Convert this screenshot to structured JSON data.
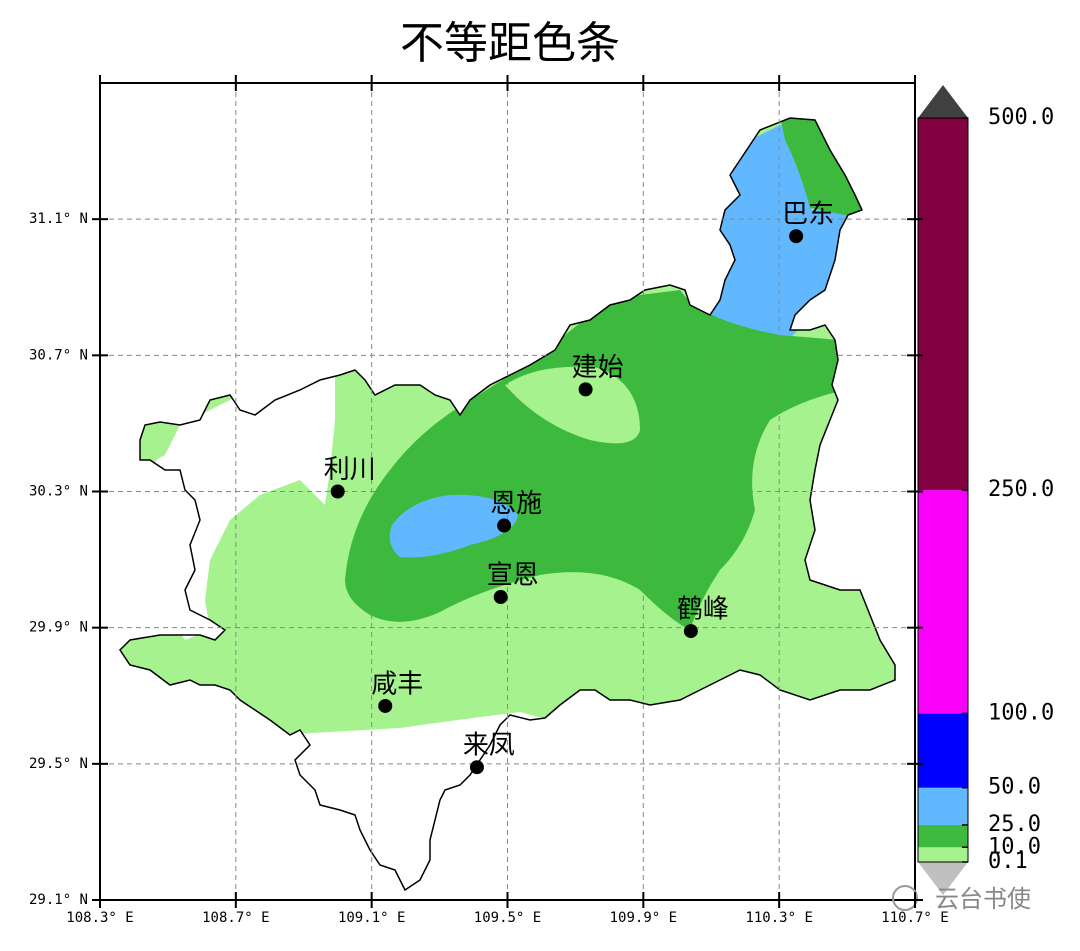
{
  "title": "不等距色条",
  "map": {
    "xlim": [
      108.3,
      110.7
    ],
    "ylim": [
      29.1,
      31.5
    ],
    "xticks": [
      {
        "value": 108.3,
        "label": "108.3° E"
      },
      {
        "value": 108.7,
        "label": "108.7° E"
      },
      {
        "value": 109.1,
        "label": "109.1° E"
      },
      {
        "value": 109.5,
        "label": "109.5° E"
      },
      {
        "value": 109.9,
        "label": "109.9° E"
      },
      {
        "value": 110.3,
        "label": "110.3° E"
      },
      {
        "value": 110.7,
        "label": "110.7° E"
      }
    ],
    "yticks": [
      {
        "value": 29.1,
        "label": "29.1° N"
      },
      {
        "value": 29.5,
        "label": "29.5° N"
      },
      {
        "value": 29.9,
        "label": "29.9° N"
      },
      {
        "value": 30.3,
        "label": "30.3° N"
      },
      {
        "value": 30.7,
        "label": "30.7° N"
      },
      {
        "value": 31.1,
        "label": "31.1° N"
      }
    ],
    "grid": true,
    "cities": [
      {
        "name": "巴东",
        "lon": 110.35,
        "lat": 31.05
      },
      {
        "name": "建始",
        "lon": 109.73,
        "lat": 30.6
      },
      {
        "name": "利川",
        "lon": 109.0,
        "lat": 30.3
      },
      {
        "name": "恩施",
        "lon": 109.49,
        "lat": 30.2
      },
      {
        "name": "宣恩",
        "lon": 109.48,
        "lat": 29.99
      },
      {
        "name": "鹤峰",
        "lon": 110.04,
        "lat": 29.89
      },
      {
        "name": "咸丰",
        "lon": 109.14,
        "lat": 29.67
      },
      {
        "name": "来凤",
        "lon": 109.41,
        "lat": 29.49
      }
    ]
  },
  "colorbar": {
    "levels": [
      0.1,
      {
        "value": 10,
        "label": "10.0"
      },
      {
        "value": 25,
        "label": "25.0"
      },
      {
        "value": 50,
        "label": "50.0"
      },
      {
        "value": 100,
        "label": "100.0"
      },
      {
        "value": 250,
        "label": "250.0"
      },
      {
        "value": 500,
        "label": "500.0"
      }
    ],
    "colors": [
      "#a6f28f",
      "#3dba3d",
      "#61b8ff",
      "#0000ff",
      "#fa00fa",
      "#800040"
    ],
    "extend_colors": {
      "below": "#c0c0c0",
      "above": "#404040"
    }
  },
  "watermark": "云台书使"
}
